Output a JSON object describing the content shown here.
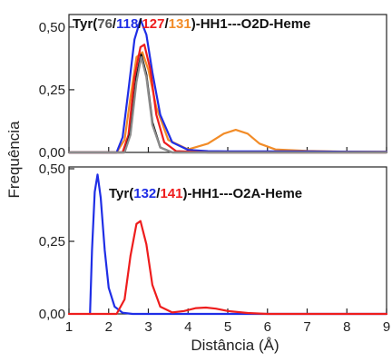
{
  "chart_data": {
    "type": "line",
    "xlabel": "Distância (Å)",
    "ylabel": "Frequência",
    "xlim": [
      1,
      9
    ],
    "x_ticks": [
      1,
      2,
      3,
      4,
      5,
      6,
      7,
      8,
      9
    ],
    "x_tick_labels": [
      "1",
      "2",
      "3",
      "4",
      "5",
      "6",
      "7",
      "8",
      "9"
    ],
    "grid": false,
    "colors": {
      "black": "#111111",
      "gray": "#8c8c8c",
      "blue": "#1f2ee6",
      "red": "#ee1d1d",
      "orange": "#f28c28"
    },
    "panels": [
      {
        "title_parts": [
          {
            "text": "Tyr(",
            "color": "#111111"
          },
          {
            "text": "76",
            "color": "#555555"
          },
          {
            "text": "/",
            "color": "#111111"
          },
          {
            "text": "118",
            "color": "#1f2ee6"
          },
          {
            "text": "/",
            "color": "#111111"
          },
          {
            "text": "127",
            "color": "#ee1d1d"
          },
          {
            "text": "/",
            "color": "#111111"
          },
          {
            "text": "131",
            "color": "#f28c28"
          },
          {
            "text": ")-HH1---O2D-Heme",
            "color": "#111111"
          }
        ],
        "ylim": [
          0,
          0.55
        ],
        "y_ticks": [
          0,
          0.25,
          0.5
        ],
        "y_tick_labels": [
          "0,00",
          "0,25",
          "0,50"
        ],
        "series": [
          {
            "color": "#f28c28",
            "x": [
              1.0,
              2.2,
              2.4,
              2.55,
              2.7,
              2.85,
              3.0,
              3.2,
              3.5,
              4.0,
              4.5,
              4.9,
              5.2,
              5.5,
              5.8,
              6.2,
              7.0,
              8.0,
              9.0
            ],
            "y": [
              0.0,
              0.0,
              0.05,
              0.22,
              0.38,
              0.4,
              0.33,
              0.18,
              0.05,
              0.012,
              0.035,
              0.075,
              0.09,
              0.075,
              0.035,
              0.012,
              0.006,
              0.003,
              0.002
            ]
          },
          {
            "color": "#1f2ee6",
            "x": [
              1.0,
              2.2,
              2.35,
              2.5,
              2.65,
              2.8,
              2.95,
              3.1,
              3.3,
              3.6,
              4.0,
              4.5,
              5.0,
              6.0,
              7.0,
              8.0,
              9.0
            ],
            "y": [
              0.0,
              0.0,
              0.06,
              0.25,
              0.45,
              0.53,
              0.47,
              0.32,
              0.15,
              0.04,
              0.01,
              0.005,
              0.004,
              0.004,
              0.004,
              0.003,
              0.002
            ]
          },
          {
            "color": "#ee1d1d",
            "x": [
              1.0,
              2.35,
              2.5,
              2.65,
              2.8,
              2.9,
              3.05,
              3.2,
              3.4,
              3.7,
              4.5,
              9.0
            ],
            "y": [
              0.0,
              0.0,
              0.07,
              0.3,
              0.42,
              0.43,
              0.33,
              0.15,
              0.04,
              0.005,
              0.0,
              0.0
            ]
          },
          {
            "color": "#111111",
            "x": [
              1.0,
              2.4,
              2.55,
              2.7,
              2.82,
              2.95,
              3.1,
              3.3,
              3.6,
              9.0
            ],
            "y": [
              0.0,
              0.0,
              0.08,
              0.3,
              0.39,
              0.31,
              0.12,
              0.02,
              0.0,
              0.0
            ]
          },
          {
            "color": "#8c8c8c",
            "x": [
              1.0,
              2.4,
              2.55,
              2.7,
              2.82,
              2.95,
              3.1,
              3.3,
              3.6,
              9.0
            ],
            "y": [
              0.0,
              0.0,
              0.07,
              0.28,
              0.38,
              0.3,
              0.11,
              0.02,
              0.0,
              0.0
            ]
          }
        ]
      },
      {
        "title_parts": [
          {
            "text": "Tyr(",
            "color": "#111111"
          },
          {
            "text": "132",
            "color": "#1f2ee6"
          },
          {
            "text": "/",
            "color": "#111111"
          },
          {
            "text": "141",
            "color": "#ee1d1d"
          },
          {
            "text": ")-HH1---O2A-Heme",
            "color": "#111111"
          }
        ],
        "ylim": [
          0,
          0.5
        ],
        "y_ticks": [
          0,
          0.25,
          0.5
        ],
        "y_tick_labels": [
          "0,00",
          "0,25",
          "0,50"
        ],
        "series": [
          {
            "color": "#1f2ee6",
            "x": [
              1.52,
              1.53,
              1.58,
              1.65,
              1.72,
              1.8,
              1.9,
              2.0,
              2.15,
              2.35,
              2.6,
              9.0
            ],
            "y": [
              0.0,
              0.0,
              0.22,
              0.42,
              0.48,
              0.4,
              0.22,
              0.09,
              0.025,
              0.004,
              0.0,
              0.0
            ]
          },
          {
            "color": "#ee1d1d",
            "x": [
              1.0,
              2.2,
              2.4,
              2.55,
              2.7,
              2.8,
              2.95,
              3.1,
              3.3,
              3.6,
              3.9,
              4.2,
              4.45,
              4.7,
              5.0,
              5.5,
              6.0,
              9.0
            ],
            "y": [
              0.0,
              0.0,
              0.05,
              0.2,
              0.31,
              0.32,
              0.24,
              0.1,
              0.025,
              0.005,
              0.01,
              0.02,
              0.022,
              0.018,
              0.01,
              0.003,
              0.0,
              0.0
            ]
          }
        ]
      }
    ]
  }
}
